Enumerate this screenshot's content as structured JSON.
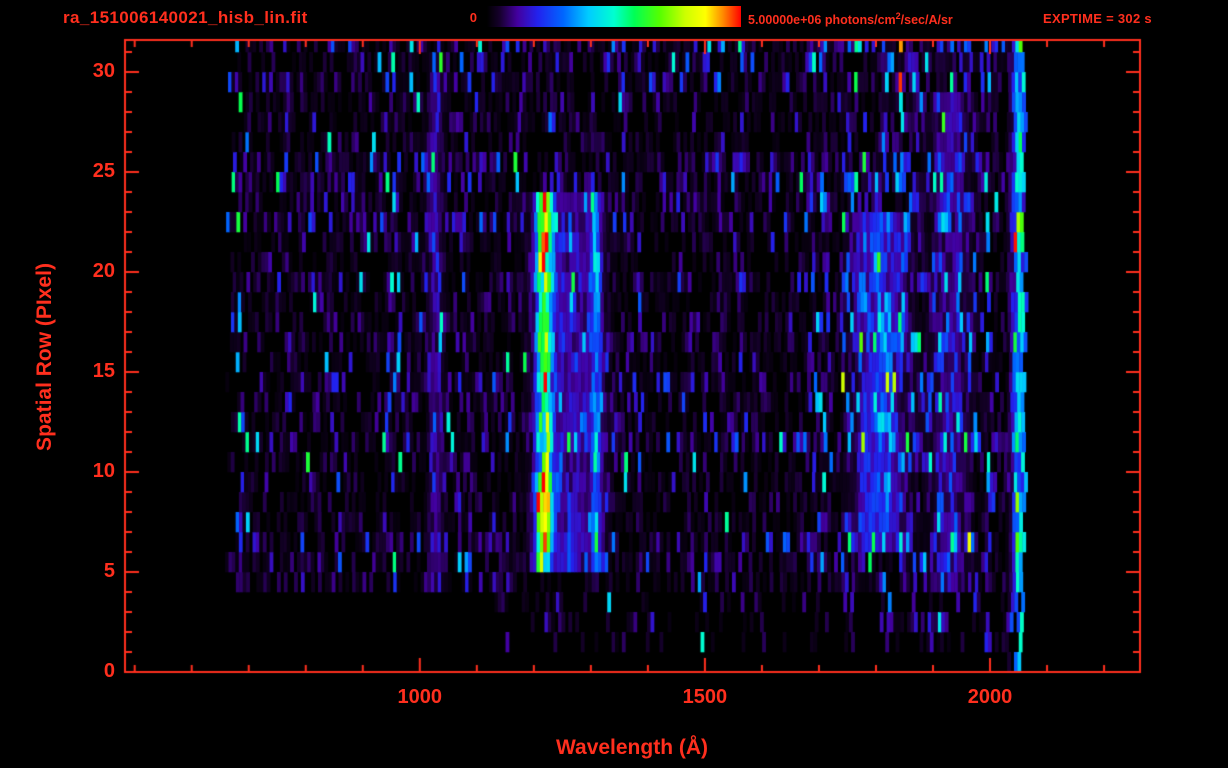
{
  "header": {
    "title": "ra_151006140021_hisb_lin.fit",
    "exptime": "EXPTIME = 302 s",
    "colorbar": {
      "min_label": "0",
      "max_text_prefix": "5.00000e+06 photons/cm",
      "max_text_sup": "2",
      "max_text_suffix": "/sec/A/sr"
    }
  },
  "colors": {
    "axis": "#ff2f1e",
    "background": "#000000"
  },
  "chart_data": {
    "type": "heatmap",
    "title": "ra_151006140021_hisb_lin.fit",
    "xlabel": "Wavelength (Å)",
    "ylabel": "Spatial Row (PIxel)",
    "xlim": [
      483,
      2263
    ],
    "ylim": [
      0,
      31.6
    ],
    "xticks": [
      1000,
      1500,
      2000
    ],
    "xminor": 100,
    "yticks": [
      0,
      5,
      10,
      15,
      20,
      25,
      30
    ],
    "yminor": 1,
    "colorbar_range": [
      0,
      5000000
    ],
    "colorbar_units": "photons/cm^2/sec/A/sr",
    "exposure_time_s": 302,
    "data_extent": {
      "wave_min": 658,
      "wave_max": 2062,
      "row_min": 0,
      "row_max": 31
    },
    "colormap": [
      [
        0.0,
        "#000000"
      ],
      [
        0.05,
        "#16002c"
      ],
      [
        0.12,
        "#43009f"
      ],
      [
        0.2,
        "#2222ee"
      ],
      [
        0.3,
        "#0066ff"
      ],
      [
        0.4,
        "#00ccff"
      ],
      [
        0.5,
        "#00ffd0"
      ],
      [
        0.58,
        "#00ff55"
      ],
      [
        0.68,
        "#55ff00"
      ],
      [
        0.78,
        "#ccff00"
      ],
      [
        0.86,
        "#ffff00"
      ],
      [
        0.93,
        "#ff8800"
      ],
      [
        1.0,
        "#ff0000"
      ]
    ],
    "features": [
      {
        "name": "lyman-alpha-core",
        "wavelength": 1216,
        "sigma": 9,
        "rows": [
          5,
          24
        ],
        "peak": 0.62
      },
      {
        "name": "lyman-alpha-wing",
        "wavelength": 1255,
        "sigma": 38,
        "rows": [
          5,
          24
        ],
        "peak": 0.13
      },
      {
        "name": "emission-line-1300",
        "wavelength": 1306,
        "sigma": 7,
        "rows": [
          5,
          24
        ],
        "peak": 0.3
      },
      {
        "name": "lyman-alpha-hotspot-low",
        "wavelength": 1216,
        "sigma": 11,
        "rows": [
          6,
          10
        ],
        "peak": 0.28
      },
      {
        "name": "lyman-alpha-hotspot-high",
        "wavelength": 1216,
        "sigma": 11,
        "rows": [
          19,
          24
        ],
        "peak": 0.22
      },
      {
        "name": "lyman-beta-column",
        "wavelength": 1025,
        "sigma": 9,
        "rows": [
          4,
          31
        ],
        "peak": 0.1
      },
      {
        "name": "airglow-band-1800",
        "wavelength": 1805,
        "sigma": 28,
        "rows": [
          6,
          23
        ],
        "peak": 0.22
      },
      {
        "name": "airglow-band-1930",
        "wavelength": 1930,
        "sigma": 22,
        "rows": [
          4,
          29
        ],
        "peak": 0.1
      },
      {
        "name": "right-edge-airglow",
        "wavelength": 2050,
        "sigma": 9,
        "rows": [
          0,
          32
        ],
        "peak": 0.4
      }
    ]
  }
}
